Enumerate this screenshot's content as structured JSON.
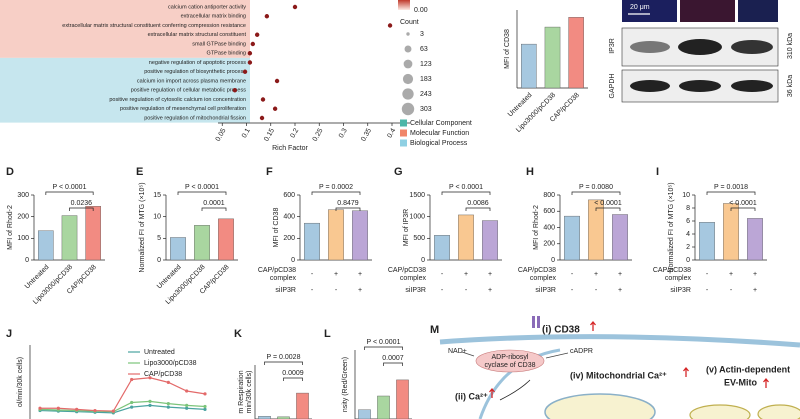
{
  "chart_data": [
    {
      "type": "dotplot",
      "xlabel": "Rich Factor",
      "xlim": [
        0,
        0.4
      ],
      "xticks": [
        0.05,
        0.1,
        0.15,
        0.2,
        0.25,
        0.3,
        0.35,
        0.4
      ],
      "color": "#8b1a1a",
      "categories": [
        "calcium cation antiporter activity",
        "extracellular matrix binding",
        "extracellular matrix structural constituent conferring compression resistance",
        "extracellular matrix structural constituent",
        "small GTPase binding",
        "GTPase binding",
        "negative regulation of apoptotic process",
        "positive regulation of biosynthetic process",
        "calcium ion import across plasma membrane",
        "positive regulation of cellular metabolic process",
        "positive regulation of cytosolic calcium ion concentration",
        "positive regulation of mesenchymal cell proliferation",
        "positive regulation of mitochondrial fission"
      ],
      "values": [
        0.2,
        0.142,
        0.396,
        0.122,
        0.113,
        0.107,
        0.107,
        0.097,
        0.163,
        0.076,
        0.134,
        0.159,
        0.132
      ],
      "size_legend": {
        "title": "Count",
        "values": [
          3,
          63,
          123,
          183,
          243,
          303
        ]
      },
      "color_legend": {
        "labels": [
          "0.00"
        ],
        "colors": [
          "#c0392b",
          "#fdebe4"
        ]
      },
      "legend": [
        {
          "name": "Cellular Component",
          "color": "#4db6a8"
        },
        {
          "name": "Molecular Function",
          "color": "#f0866a"
        },
        {
          "name": "Biological Process",
          "color": "#8fd0e3"
        }
      ]
    },
    {
      "type": "bar",
      "ylabel": "MFI of CD38",
      "ylim": [
        0,
        160
      ],
      "categories": [
        "Untreated",
        "Lipo3000/pCD38",
        "CAP/pCD38"
      ],
      "values": [
        90,
        125,
        145
      ],
      "colors": [
        "#a6c8e0",
        "#a9d6a0",
        "#f28b82"
      ]
    },
    {
      "type": "bar",
      "ylabel": "MFI of Rhod-2",
      "ylim": [
        0,
        300
      ],
      "yticks": [
        0,
        100,
        200,
        300
      ],
      "categories": [
        "Untreated",
        "Lipo3000/pCD38",
        "CAP/pCD38"
      ],
      "values": [
        135,
        205,
        248
      ],
      "colors": [
        "#a6c8e0",
        "#a9d6a0",
        "#f28b82"
      ],
      "annotations": [
        "P < 0.0001",
        "0.0236"
      ]
    },
    {
      "type": "bar",
      "ylabel": "Normalized FI of MTG (×10⁵)",
      "ylim": [
        0,
        15
      ],
      "yticks": [
        0,
        5,
        10,
        15
      ],
      "categories": [
        "Untreated",
        "Lipo3000/pCD38",
        "CAP/pCD38"
      ],
      "values": [
        5.2,
        8,
        9.5
      ],
      "colors": [
        "#a6c8e0",
        "#a9d6a0",
        "#f28b82"
      ],
      "annotations": [
        "P < 0.0001",
        "0.0001"
      ]
    },
    {
      "type": "bar",
      "ylabel": "MFI of CD38",
      "ylim": [
        0,
        600
      ],
      "yticks": [
        0,
        200,
        400,
        600
      ],
      "values": [
        340,
        465,
        455
      ],
      "colors": [
        "#a6c8e0",
        "#f9c891",
        "#bba6d6"
      ],
      "annotations": [
        "P = 0.0002",
        "0.8479"
      ],
      "rows": [
        {
          "label": [
            "CAP/pCD38",
            "complex"
          ],
          "values": [
            "-",
            "+",
            "+"
          ]
        },
        {
          "label": [
            "siIP3R"
          ],
          "values": [
            "-",
            "-",
            "+"
          ]
        }
      ]
    },
    {
      "type": "bar",
      "ylabel": "MFI of IP3R",
      "ylim": [
        0,
        1500
      ],
      "yticks": [
        0,
        500,
        1000,
        1500
      ],
      "values": [
        570,
        1040,
        910
      ],
      "colors": [
        "#a6c8e0",
        "#f9c891",
        "#bba6d6"
      ],
      "annotations": [
        "P < 0.0001",
        "0.0086"
      ],
      "rows": [
        {
          "label": [
            "CAP/pCD38",
            "complex"
          ],
          "values": [
            "-",
            "+",
            "+"
          ]
        },
        {
          "label": [
            "siIP3R"
          ],
          "values": [
            "-",
            "-",
            "+"
          ]
        }
      ]
    },
    {
      "type": "bar",
      "ylabel": "MFI of Rhod-2",
      "ylim": [
        0,
        800
      ],
      "yticks": [
        0,
        200,
        400,
        600,
        800
      ],
      "values": [
        540,
        740,
        560
      ],
      "colors": [
        "#a6c8e0",
        "#f9c891",
        "#bba6d6"
      ],
      "annotations": [
        "P = 0.0080",
        "< 0.0001"
      ],
      "rows": [
        {
          "label": [
            "CAP/pCD38",
            "complex"
          ],
          "values": [
            "-",
            "+",
            "+"
          ]
        },
        {
          "label": [
            "siIP3R"
          ],
          "values": [
            "-",
            "-",
            "+"
          ]
        }
      ]
    },
    {
      "type": "bar",
      "ylabel": "Normalized FI of MTG (×10⁵)",
      "ylim": [
        0,
        10
      ],
      "yticks": [
        0,
        2,
        4,
        6,
        8,
        10
      ],
      "values": [
        5.8,
        8.7,
        6.4
      ],
      "colors": [
        "#a6c8e0",
        "#f9c891",
        "#bba6d6"
      ],
      "annotations": [
        "P = 0.0018",
        "< 0.0001"
      ],
      "rows": [
        {
          "label": [
            "CAP/pCD38",
            "complex"
          ],
          "values": [
            "-",
            "+",
            "+"
          ]
        },
        {
          "label": [
            "siIP3R"
          ],
          "values": [
            "-",
            "-",
            "+"
          ]
        }
      ]
    },
    {
      "type": "line",
      "ylabel": "ol/min/30k cells)",
      "ylim": [
        0,
        200
      ],
      "categories": [
        null,
        null,
        null,
        null,
        null,
        null,
        null,
        null,
        null,
        null
      ],
      "series": [
        {
          "name": "Untreated",
          "color": "#4aa3a0",
          "values": [
            86,
            85,
            84,
            83,
            82,
            92,
            95,
            92,
            90,
            88
          ]
        },
        {
          "name": "Lipo3000/pCD38",
          "color": "#7cc47a",
          "values": [
            88,
            87,
            86,
            85,
            84,
            100,
            102,
            98,
            95,
            93
          ]
        },
        {
          "name": "CAP/pCD38",
          "color": "#e36a6a",
          "values": [
            90,
            90,
            88,
            86,
            85,
            140,
            143,
            135,
            120,
            115
          ]
        }
      ]
    },
    {
      "type": "bar",
      "ylabel": [
        "m Respiration",
        "min/30k cells)"
      ],
      "ylim": [
        0,
        100
      ],
      "values": [
        5,
        4,
        48
      ],
      "colors": [
        "#a6c8e0",
        "#a9d6a0",
        "#f28b82"
      ],
      "annotations": [
        "P = 0.0028",
        "0.0009"
      ]
    },
    {
      "type": "bar",
      "ylabel": "nsity (Red/Green)",
      "ylim": [
        0,
        1.5
      ],
      "values": [
        0.2,
        0.5,
        0.85
      ],
      "colors": [
        "#a6c8e0",
        "#a9d6a0",
        "#f28b82"
      ],
      "annotations": [
        "P < 0.0001",
        "0.0007"
      ]
    }
  ],
  "panels": [
    "D",
    "E",
    "F",
    "G",
    "H",
    "I",
    "J",
    "K",
    "L",
    "M"
  ],
  "blot": {
    "scale": "20 μm",
    "rows": [
      "IP3R",
      "GAPDH"
    ],
    "sizes": [
      "310 kDa",
      "36 kDa"
    ]
  },
  "diagram": {
    "cd38": "(i) CD38",
    "nad": "NAD+",
    "enzyme": [
      "ADP-ribosyl",
      "cyclase of CD38"
    ],
    "product": "cADPR",
    "mito": "(iv) Mitochondrial Ca²⁺",
    "ev": [
      "(v) Actin-dependent",
      "EV-Mito"
    ],
    "ca": "(ii) Ca²⁺"
  }
}
